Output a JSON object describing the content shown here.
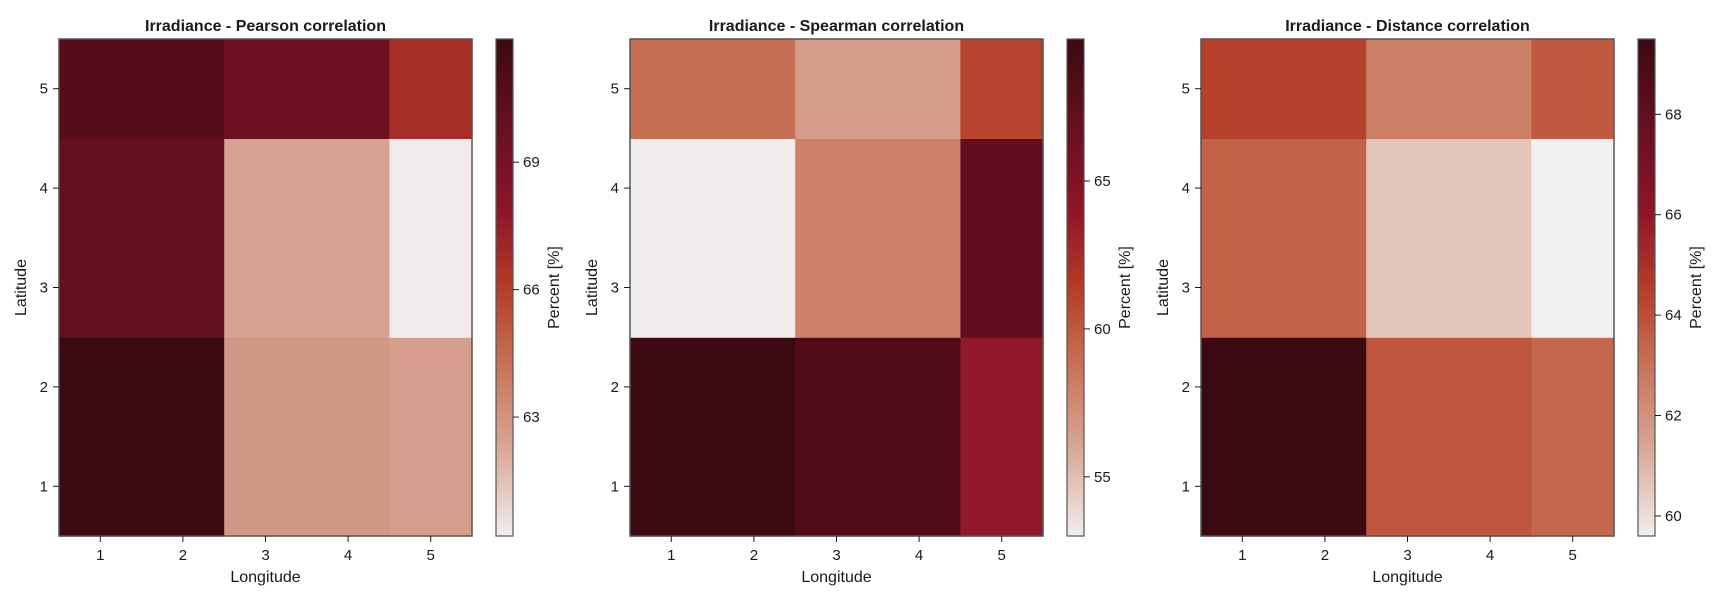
{
  "colors": {
    "scale": [
      "#f1eeee",
      "#d9a99a",
      "#c8765a",
      "#b53c27",
      "#8b1228",
      "#65101f",
      "#3b0912"
    ],
    "frame": "#555555",
    "tick": "#1a1a1a"
  },
  "chart_data": [
    {
      "type": "heatmap",
      "title": "Irradiance - Pearson correlation",
      "xlabel": "Longitude",
      "ylabel": "Latitude",
      "colorbar_label": "Percent [%]",
      "x_edges": [
        0.5,
        2.5,
        4.5,
        5.5
      ],
      "y_edges": [
        0.5,
        2.5,
        4.5,
        5.5
      ],
      "values": [
        [
          71.9,
          62.8,
          62.6
        ],
        [
          70.1,
          62.4,
          60.3
        ],
        [
          70.7,
          69.6,
          66.7
        ]
      ],
      "clim": [
        60.2,
        71.9
      ],
      "xticks": [
        "1",
        "2",
        "3",
        "4",
        "5"
      ],
      "yticks": [
        "1",
        "2",
        "3",
        "4",
        "5"
      ],
      "cticks": [
        63,
        66,
        69
      ],
      "ctick_labels": [
        "63",
        "66",
        "69"
      ]
    },
    {
      "type": "heatmap",
      "title": "Irradiance - Spearman correlation",
      "xlabel": "Longitude",
      "ylabel": "Latitude",
      "colorbar_label": "Percent [%]",
      "x_edges": [
        0.5,
        2.5,
        4.5,
        5.5
      ],
      "y_edges": [
        0.5,
        2.5,
        4.5,
        5.5
      ],
      "values": [
        [
          69.8,
          68.4,
          63.8
        ],
        [
          53.1,
          58.0,
          67.3
        ],
        [
          59.0,
          56.5,
          61.0
        ]
      ],
      "clim": [
        53.0,
        69.8
      ],
      "xticks": [
        "1",
        "2",
        "3",
        "4",
        "5"
      ],
      "yticks": [
        "1",
        "2",
        "3",
        "4",
        "5"
      ],
      "cticks": [
        55,
        60,
        65
      ],
      "ctick_labels": [
        "55",
        "60",
        "65"
      ]
    },
    {
      "type": "heatmap",
      "title": "Irradiance - Distance correlation",
      "xlabel": "Longitude",
      "ylabel": "Latitude",
      "colorbar_label": "Percent [%]",
      "x_edges": [
        0.5,
        2.5,
        4.5,
        5.5
      ],
      "y_edges": [
        0.5,
        2.5,
        4.5,
        5.5
      ],
      "values": [
        [
          69.5,
          63.8,
          63.3
        ],
        [
          63.5,
          60.6,
          59.6
        ],
        [
          64.4,
          62.6,
          63.7
        ]
      ],
      "clim": [
        59.6,
        69.5
      ],
      "xticks": [
        "1",
        "2",
        "3",
        "4",
        "5"
      ],
      "yticks": [
        "1",
        "2",
        "3",
        "4",
        "5"
      ],
      "cticks": [
        60,
        62,
        64,
        66,
        68
      ],
      "ctick_labels": [
        "60",
        "62",
        "64",
        "66",
        "68"
      ]
    }
  ]
}
